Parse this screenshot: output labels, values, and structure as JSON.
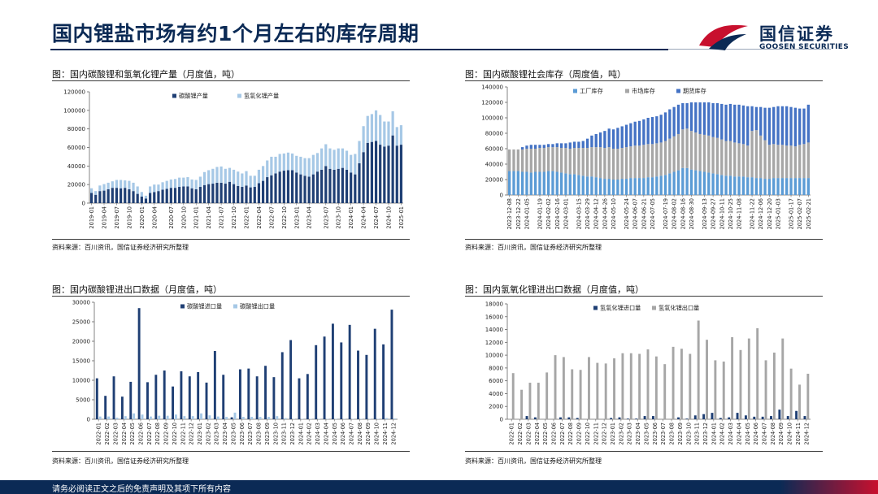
{
  "header": {
    "title": "国内锂盐市场有约1个月左右的库存周期",
    "logo_cn": "国信证券",
    "logo_en": "GOOSEN SECURITIES"
  },
  "footer": {
    "text": "请务必阅读正文之后的免责声明及其项下所有内容"
  },
  "colors": {
    "navy": "#1f3f74",
    "light_blue": "#a6c8e6",
    "gray": "#a6a6a6",
    "bar_blue": "#4472c4",
    "brand_red": "#c8102e"
  },
  "charts": [
    {
      "caption": "图：国内碳酸锂和氢氧化锂产量（月度值，吨）",
      "source": "资料来源：百川资讯，国信证券经济研究所整理"
    },
    {
      "caption": "图：国内碳酸锂社会库存（周度值，吨）",
      "source": "资料来源：百川资讯，国信证券经济研究所整理"
    },
    {
      "caption": "图：国内碳酸锂进出口数据（月度值，吨）",
      "source": "资料来源：百川资讯，国信证券经济研究所整理"
    },
    {
      "caption": "图：国内氢氧化锂进出口数据（月度值，吨）",
      "source": "资料来源：百川资讯，国信证券经济研究所整理"
    }
  ],
  "chart_data": [
    {
      "type": "bar",
      "subtype": "stacked",
      "title": "图：国内碳酸锂和氢氧化锂产量（月度值，吨）",
      "ylim": [
        0,
        120000
      ],
      "yticks": [
        0,
        20000,
        40000,
        60000,
        80000,
        100000,
        120000
      ],
      "xtick_labels": [
        "2019-01",
        "2019-04",
        "2019-07",
        "2019-10",
        "2020-01",
        "2020-04",
        "2020-07",
        "2020-10",
        "2021-01",
        "2021-04",
        "2021-07",
        "2021-10",
        "2022-01",
        "2022-04",
        "2022-07",
        "2022-10",
        "2023-01",
        "2023-04",
        "2023-07",
        "2023-10",
        "2024-01",
        "2024-04",
        "2024-07",
        "2024-10",
        "2025-01"
      ],
      "legend_position": "top",
      "series": [
        {
          "name": "碳酸锂产量",
          "color": "#1f3f74",
          "values": [
            11000,
            9000,
            13000,
            13500,
            15000,
            16500,
            16500,
            16000,
            16500,
            15000,
            13000,
            10000,
            7000,
            5000,
            11000,
            12000,
            13000,
            14500,
            15500,
            16500,
            16500,
            17500,
            18000,
            18000,
            16000,
            15000,
            17500,
            19500,
            20500,
            21000,
            22000,
            22000,
            21000,
            23000,
            20500,
            18500,
            17500,
            19000,
            17000,
            17500,
            21500,
            24000,
            28000,
            30000,
            32000,
            34000,
            35000,
            35500,
            35500,
            33000,
            31000,
            29500,
            28500,
            31000,
            34000,
            36000,
            40000,
            37000,
            36000,
            37000,
            38000,
            36000,
            33000,
            31000,
            43000,
            55000,
            65000,
            66000,
            67000,
            63000,
            61000,
            62000,
            73000,
            62000,
            63000
          ]
        },
        {
          "name": "氢氧化锂产量",
          "color": "#a6c8e6",
          "values": [
            5000,
            4000,
            6000,
            7000,
            7000,
            7000,
            8500,
            9000,
            8000,
            9000,
            9000,
            8000,
            5000,
            3000,
            7000,
            8000,
            7000,
            8000,
            8500,
            9000,
            9500,
            10000,
            9500,
            10000,
            9500,
            10000,
            11000,
            14000,
            15000,
            16000,
            17000,
            17500,
            16000,
            15000,
            15500,
            15500,
            14500,
            15500,
            12500,
            12000,
            14500,
            16000,
            18000,
            20000,
            18000,
            19000,
            18500,
            19000,
            18000,
            18000,
            19000,
            19000,
            20000,
            21000,
            20000,
            23000,
            23500,
            22000,
            21500,
            22000,
            21000,
            20500,
            19000,
            22000,
            24000,
            28000,
            29000,
            30000,
            33000,
            32000,
            27000,
            26000,
            26000,
            20000,
            21000
          ]
        }
      ]
    },
    {
      "type": "bar",
      "subtype": "stacked",
      "title": "图：国内碳酸锂社会库存（周度值，吨）",
      "ylim": [
        0,
        140000
      ],
      "yticks": [
        0,
        20000,
        40000,
        60000,
        80000,
        100000,
        120000,
        140000
      ],
      "xtick_labels": [
        "2023-12-08",
        "2023-12-22",
        "2024-01-05",
        "2024-01-19",
        "2024-02-02",
        "2024-02-16",
        "2024-03-01",
        "2024-03-15",
        "2024-03-29",
        "2024-04-12",
        "2024-04-26",
        "2024-05-10",
        "2024-05-24",
        "2024-06-07",
        "2024-06-21",
        "2024-07-05",
        "2024-07-19",
        "2024-08-02",
        "2024-08-16",
        "2024-08-30",
        "2024-09-13",
        "2024-09-27",
        "2024-10-11",
        "2024-10-25",
        "2024-11-08",
        "2024-11-22",
        "2024-12-06",
        "2024-12-20",
        "2025-01-03",
        "2025-01-17",
        "2025-02-07",
        "2025-02-21"
      ],
      "legend_position": "top",
      "series": [
        {
          "name": "工厂库存",
          "color": "#5b9bd5",
          "values": [
            31000,
            31000,
            31000,
            30000,
            30000,
            29000,
            30000,
            30000,
            30000,
            31000,
            31000,
            30000,
            29000,
            28000,
            27000,
            27000,
            26000,
            25000,
            24000,
            24000,
            23000,
            22000,
            21000,
            21000,
            20000,
            20000,
            21000,
            21000,
            22000,
            22000,
            22000,
            22000,
            23000,
            23000,
            24000,
            25000,
            26000,
            28000,
            30000,
            32000,
            35000,
            35000,
            33000,
            32000,
            31000,
            30000,
            29000,
            28000,
            27000,
            26000,
            25000,
            25000,
            24000,
            24000,
            24000,
            23000,
            23000,
            22000,
            22000,
            21000,
            21000,
            22000,
            22000,
            22000,
            22000,
            22000,
            22000,
            22000,
            22000,
            22000
          ]
        },
        {
          "name": "市场库存",
          "color": "#a6a6a6",
          "values": [
            28000,
            28000,
            28000,
            29000,
            30000,
            31000,
            30000,
            31000,
            31000,
            31000,
            31000,
            32000,
            32000,
            33000,
            33000,
            34000,
            35000,
            36000,
            37000,
            38000,
            39000,
            40000,
            40000,
            41000,
            40000,
            40000,
            40000,
            41000,
            41000,
            42000,
            42000,
            43000,
            43000,
            43000,
            43000,
            43000,
            44000,
            45000,
            46000,
            47000,
            50000,
            51000,
            50000,
            49000,
            48000,
            48000,
            48000,
            47000,
            47000,
            46000,
            45000,
            45000,
            44000,
            43000,
            42000,
            41000,
            60000,
            62000,
            55000,
            50000,
            44000,
            44000,
            43000,
            43000,
            42000,
            42000,
            41000,
            43000,
            44000,
            46000
          ]
        },
        {
          "name": "期货库存",
          "color": "#4472c4",
          "values": [
            0,
            0,
            0,
            3000,
            4000,
            5000,
            5000,
            4000,
            4000,
            4000,
            4000,
            5000,
            6000,
            6000,
            8000,
            8000,
            8000,
            9000,
            12000,
            15000,
            17000,
            19000,
            22000,
            24000,
            25000,
            27000,
            28000,
            29000,
            30000,
            31000,
            32000,
            33000,
            34000,
            35000,
            35000,
            36000,
            37000,
            38000,
            38000,
            38000,
            34000,
            33000,
            37000,
            39000,
            41000,
            42000,
            43000,
            44000,
            45000,
            46000,
            47000,
            48000,
            49000,
            50000,
            50000,
            51000,
            32000,
            30000,
            37000,
            42000,
            48000,
            48000,
            50000,
            50000,
            51000,
            50000,
            50000,
            47000,
            46000,
            49000
          ]
        }
      ]
    },
    {
      "type": "bar",
      "title": "图：国内碳酸锂进出口数据（月度值，吨）",
      "ylim": [
        0,
        30000
      ],
      "yticks": [
        0,
        5000,
        10000,
        15000,
        20000,
        25000,
        30000
      ],
      "categories": [
        "2022-01",
        "2022-02",
        "2022-03",
        "2022-04",
        "2022-05",
        "2022-06",
        "2022-07",
        "2022-08",
        "2022-09",
        "2022-10",
        "2022-11",
        "2022-12",
        "2023-01",
        "2023-02",
        "2023-03",
        "2023-04",
        "2023-05",
        "2023-06",
        "2023-07",
        "2023-08",
        "2023-09",
        "2023-10",
        "2023-11",
        "2023-12",
        "2024-01",
        "2024-02",
        "2024-03",
        "2024-04",
        "2024-05",
        "2024-06",
        "2024-07",
        "2024-08",
        "2024-09",
        "2024-10",
        "2024-11",
        "2024-12"
      ],
      "legend_position": "top",
      "series": [
        {
          "name": "碳酸锂进口量",
          "color": "#1f3f74",
          "values": [
            10500,
            6000,
            11000,
            5800,
            9600,
            28500,
            9500,
            11400,
            12500,
            8400,
            12300,
            11000,
            12100,
            9400,
            17500,
            11400,
            500,
            12800,
            13000,
            11000,
            13700,
            10800,
            17200,
            20300,
            10500,
            11600,
            19000,
            21200,
            24500,
            19700,
            24200,
            17600,
            16500,
            23200,
            19200,
            28100
          ]
        },
        {
          "name": "碳酸锂出口量",
          "color": "#a6c8e6",
          "values": [
            700,
            700,
            400,
            800,
            1500,
            1200,
            700,
            900,
            900,
            1200,
            800,
            800,
            1500,
            1000,
            700,
            600,
            1700,
            600,
            600,
            600,
            600,
            800,
            300,
            100,
            100,
            100,
            100,
            100,
            100,
            100,
            100,
            100,
            100,
            100,
            300,
            200
          ]
        }
      ]
    },
    {
      "type": "bar",
      "title": "图：国内氢氧化锂进出口数据（月度值，吨）",
      "ylim": [
        0,
        18000
      ],
      "yticks": [
        0,
        2000,
        4000,
        6000,
        8000,
        10000,
        12000,
        14000,
        16000,
        18000
      ],
      "categories": [
        "2022-01",
        "2022-02",
        "2022-03",
        "2022-04",
        "2022-05",
        "2022-06",
        "2022-07",
        "2022-08",
        "2022-09",
        "2022-10",
        "2022-11",
        "2022-12",
        "2023-01",
        "2023-02",
        "2023-03",
        "2023-04",
        "2023-05",
        "2023-06",
        "2023-07",
        "2023-08",
        "2023-09",
        "2023-10",
        "2023-11",
        "2023-12",
        "2024-01",
        "2024-02",
        "2024-03",
        "2024-04",
        "2024-05",
        "2024-06",
        "2024-07",
        "2024-08",
        "2024-09",
        "2024-10",
        "2024-11",
        "2024-12"
      ],
      "legend_position": "top",
      "series": [
        {
          "name": "氢氧化锂进口量",
          "color": "#1f3f74",
          "values": [
            0,
            0,
            500,
            300,
            0,
            0,
            300,
            300,
            200,
            0,
            0,
            0,
            200,
            300,
            100,
            100,
            500,
            500,
            0,
            0,
            300,
            100,
            600,
            800,
            1000,
            200,
            300,
            1000,
            600,
            400,
            400,
            500,
            1500,
            500,
            1300,
            500
          ]
        },
        {
          "name": "氢氧化锂出口量",
          "color": "#a6a6a6",
          "values": [
            7200,
            4600,
            5700,
            5700,
            7300,
            10000,
            9700,
            7800,
            7700,
            9700,
            8800,
            8700,
            9500,
            10300,
            10300,
            10200,
            10900,
            9800,
            8600,
            11300,
            11000,
            10200,
            15400,
            12400,
            9200,
            9000,
            12800,
            10800,
            12600,
            14200,
            9200,
            10400,
            12600,
            7900,
            5400,
            7100
          ]
        }
      ]
    }
  ]
}
